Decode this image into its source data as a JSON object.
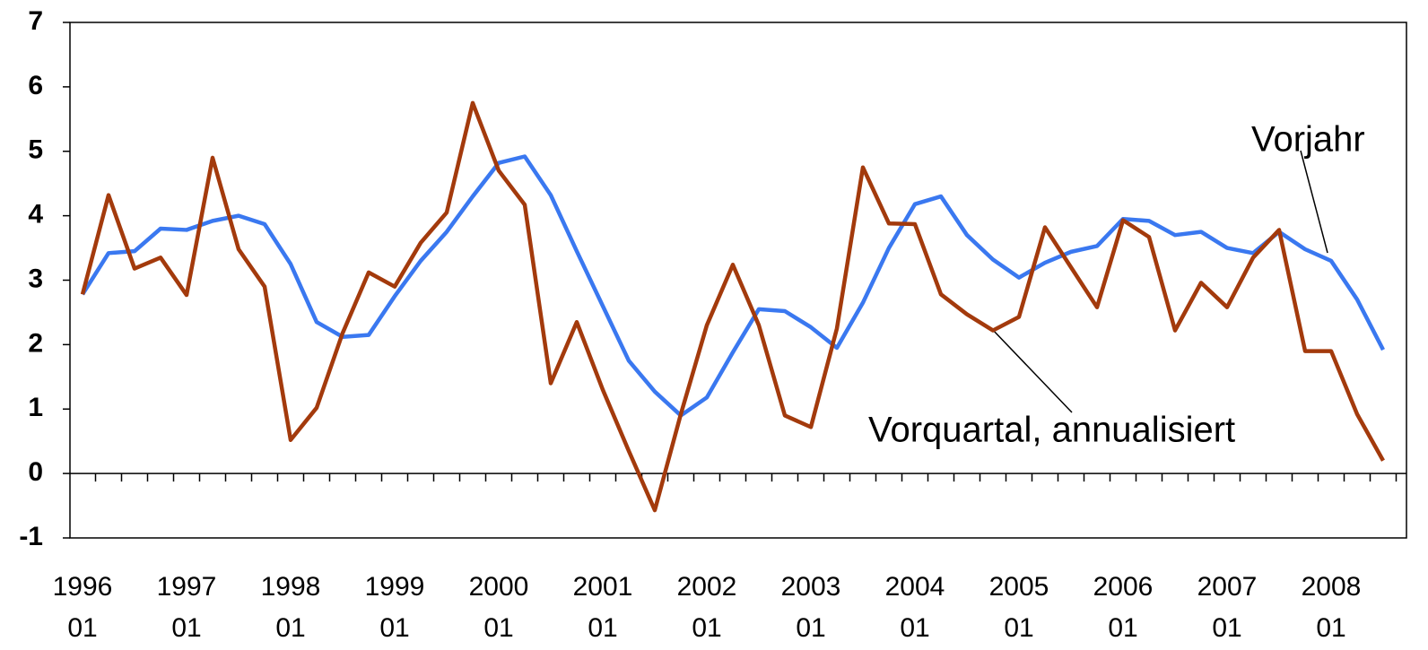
{
  "chart_data": {
    "type": "line",
    "categories": [
      [
        "1996",
        "01"
      ],
      null,
      null,
      null,
      [
        "1997",
        "01"
      ],
      null,
      null,
      null,
      [
        "1998",
        "01"
      ],
      null,
      null,
      null,
      [
        "1999",
        "01"
      ],
      null,
      null,
      null,
      [
        "2000",
        "01"
      ],
      null,
      null,
      null,
      [
        "2001",
        "01"
      ],
      null,
      null,
      null,
      [
        "2002",
        "01"
      ],
      null,
      null,
      null,
      [
        "2003",
        "01"
      ],
      null,
      null,
      null,
      [
        "2004",
        "01"
      ],
      null,
      null,
      null,
      [
        "2005",
        "01"
      ],
      null,
      null,
      null,
      [
        "2006",
        "01"
      ],
      null,
      null,
      null,
      [
        "2007",
        "01"
      ],
      null,
      null,
      null,
      [
        "2008",
        "01"
      ],
      null,
      null
    ],
    "series": [
      {
        "name": "Vorjahr",
        "color": "#3a78f0",
        "values": [
          2.78,
          3.42,
          3.45,
          3.8,
          3.78,
          3.92,
          4.0,
          3.87,
          3.25,
          2.35,
          2.12,
          2.15,
          2.75,
          3.3,
          3.75,
          4.3,
          4.82,
          4.92,
          4.32,
          3.45,
          2.6,
          1.75,
          1.27,
          0.9,
          1.18,
          1.88,
          2.55,
          2.52,
          2.27,
          1.95,
          2.65,
          3.5,
          4.18,
          4.3,
          3.7,
          3.32,
          3.04,
          3.27,
          3.44,
          3.53,
          3.95,
          3.92,
          3.7,
          3.75,
          3.5,
          3.42,
          3.75,
          3.48,
          3.3,
          2.7,
          1.92
        ]
      },
      {
        "name": "Vorquartal, annualisiert",
        "color": "#a33a0c",
        "values": [
          2.78,
          4.32,
          3.18,
          3.35,
          2.77,
          4.9,
          3.48,
          2.9,
          0.52,
          1.02,
          2.18,
          3.12,
          2.9,
          3.58,
          4.05,
          5.75,
          4.7,
          4.17,
          1.4,
          2.35,
          1.3,
          0.35,
          -0.57,
          0.92,
          2.3,
          3.24,
          2.3,
          0.9,
          0.72,
          2.25,
          4.75,
          3.88,
          3.87,
          2.78,
          2.47,
          2.22,
          2.43,
          3.82,
          3.2,
          2.58,
          3.93,
          3.67,
          2.22,
          2.96,
          2.58,
          3.35,
          3.78,
          1.9,
          1.9,
          0.92,
          0.2
        ]
      }
    ],
    "ylim": [
      -1,
      7
    ],
    "yticks": [
      -1,
      0,
      1,
      2,
      3,
      4,
      5,
      6,
      7
    ],
    "grid": false
  }
}
